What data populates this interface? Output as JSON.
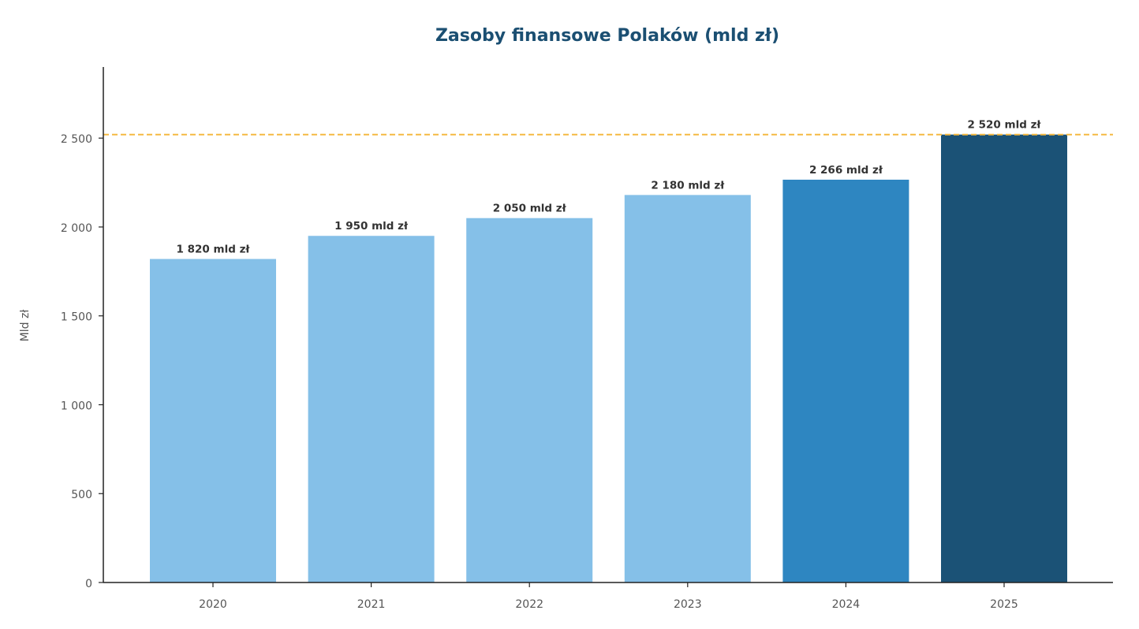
{
  "chart_data": {
    "type": "bar",
    "title": "Zasoby finansowe Polaków (mld zł)",
    "xlabel": "",
    "ylabel": "Mld zł",
    "categories": [
      "2020",
      "2021",
      "2022",
      "2023",
      "2024",
      "2025"
    ],
    "values": [
      1820,
      1950,
      2050,
      2180,
      2266,
      2520
    ],
    "data_labels": [
      "1 820 mld zł",
      "1 950 mld zł",
      "2 050 mld zł",
      "2 180 mld zł",
      "2 266 mld zł",
      "2 520 mld zł"
    ],
    "bar_colors": [
      "#85c0e8",
      "#85c0e8",
      "#85c0e8",
      "#85c0e8",
      "#2e86c1",
      "#1b5276"
    ],
    "ylim": [
      0,
      2900
    ],
    "yticks": [
      0,
      500,
      1000,
      1500,
      2000,
      2500
    ],
    "ytick_labels": [
      "0",
      "500",
      "1 000",
      "1 500",
      "2 000",
      "2 500"
    ],
    "reference_line": {
      "value": 2520,
      "style": "dashed",
      "color": "#f5b942"
    },
    "grid": false,
    "legend": "none"
  },
  "colors": {
    "title": "#1b4f72",
    "axis": "#222222",
    "tick_text": "#555555",
    "data_label_text": "#333333"
  }
}
